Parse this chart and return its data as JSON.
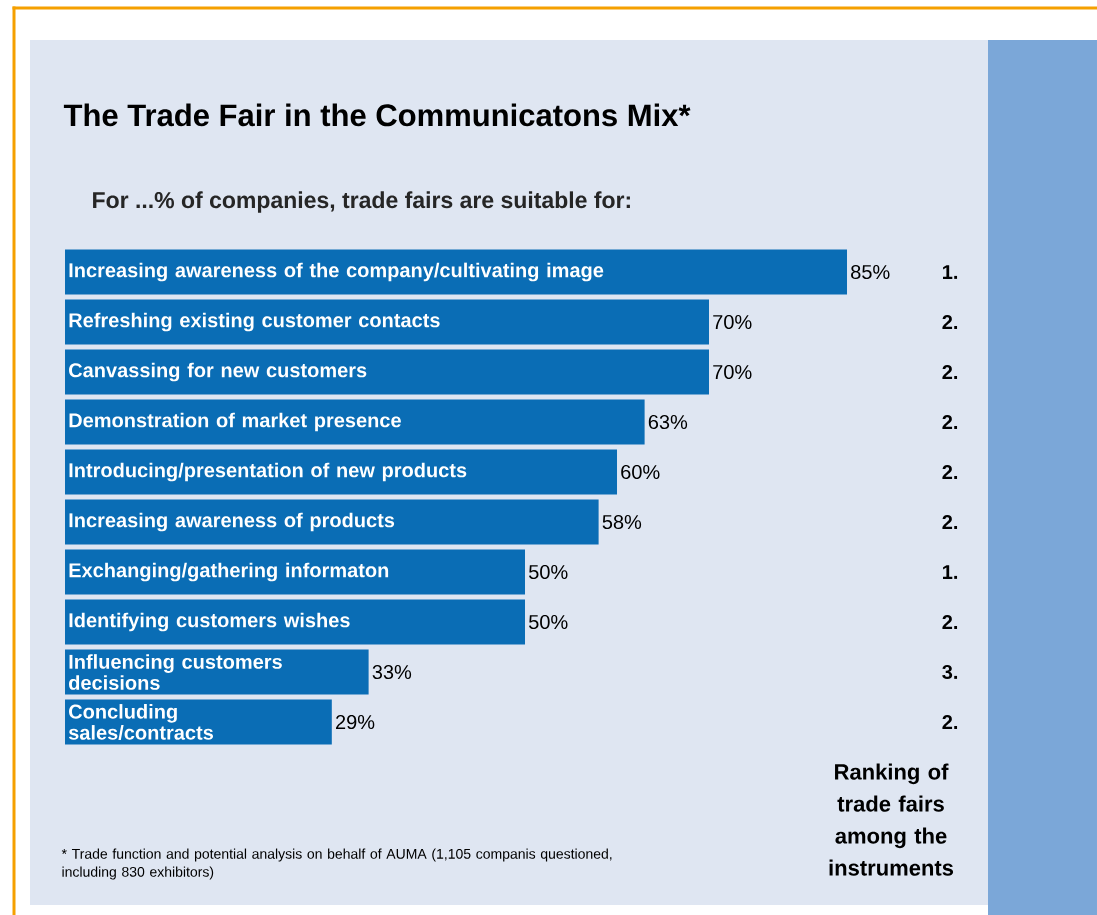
{
  "chart_data": {
    "type": "bar",
    "orientation": "horizontal",
    "title": "The Trade Fair in the Communicatons Mix*",
    "subtitle": "For ...% of companies, trade fairs are suitable for:",
    "categories": [
      "Increasing awareness of the company/cultivating image",
      "Refreshing existing customer contacts",
      "Canvassing for new customers",
      "Demonstration of market presence",
      "Introducing/presentation of new products",
      "Increasing awareness of products",
      "Exchanging/gathering informaton",
      "Identifying customers wishes",
      "Influencing customers decisions",
      "Concluding sales/contracts"
    ],
    "values": [
      85,
      70,
      70,
      63,
      60,
      58,
      50,
      50,
      33,
      29
    ],
    "value_labels": [
      "85%",
      "70%",
      "70%",
      "63%",
      "60%",
      "58%",
      "50%",
      "50%",
      "33%",
      "29%"
    ],
    "color": "#0a6db5",
    "annotations": [
      "1.",
      "2.",
      "2.",
      "2.",
      "2.",
      "2.",
      "1.",
      "2.",
      "3.",
      "2.",
      "Ranking of trade fairs among the instruments",
      "* Trade function and potential analysis on behalf of AUMA (1,105 companis questioned, including 830 exhibitors)"
    ]
  }
}
